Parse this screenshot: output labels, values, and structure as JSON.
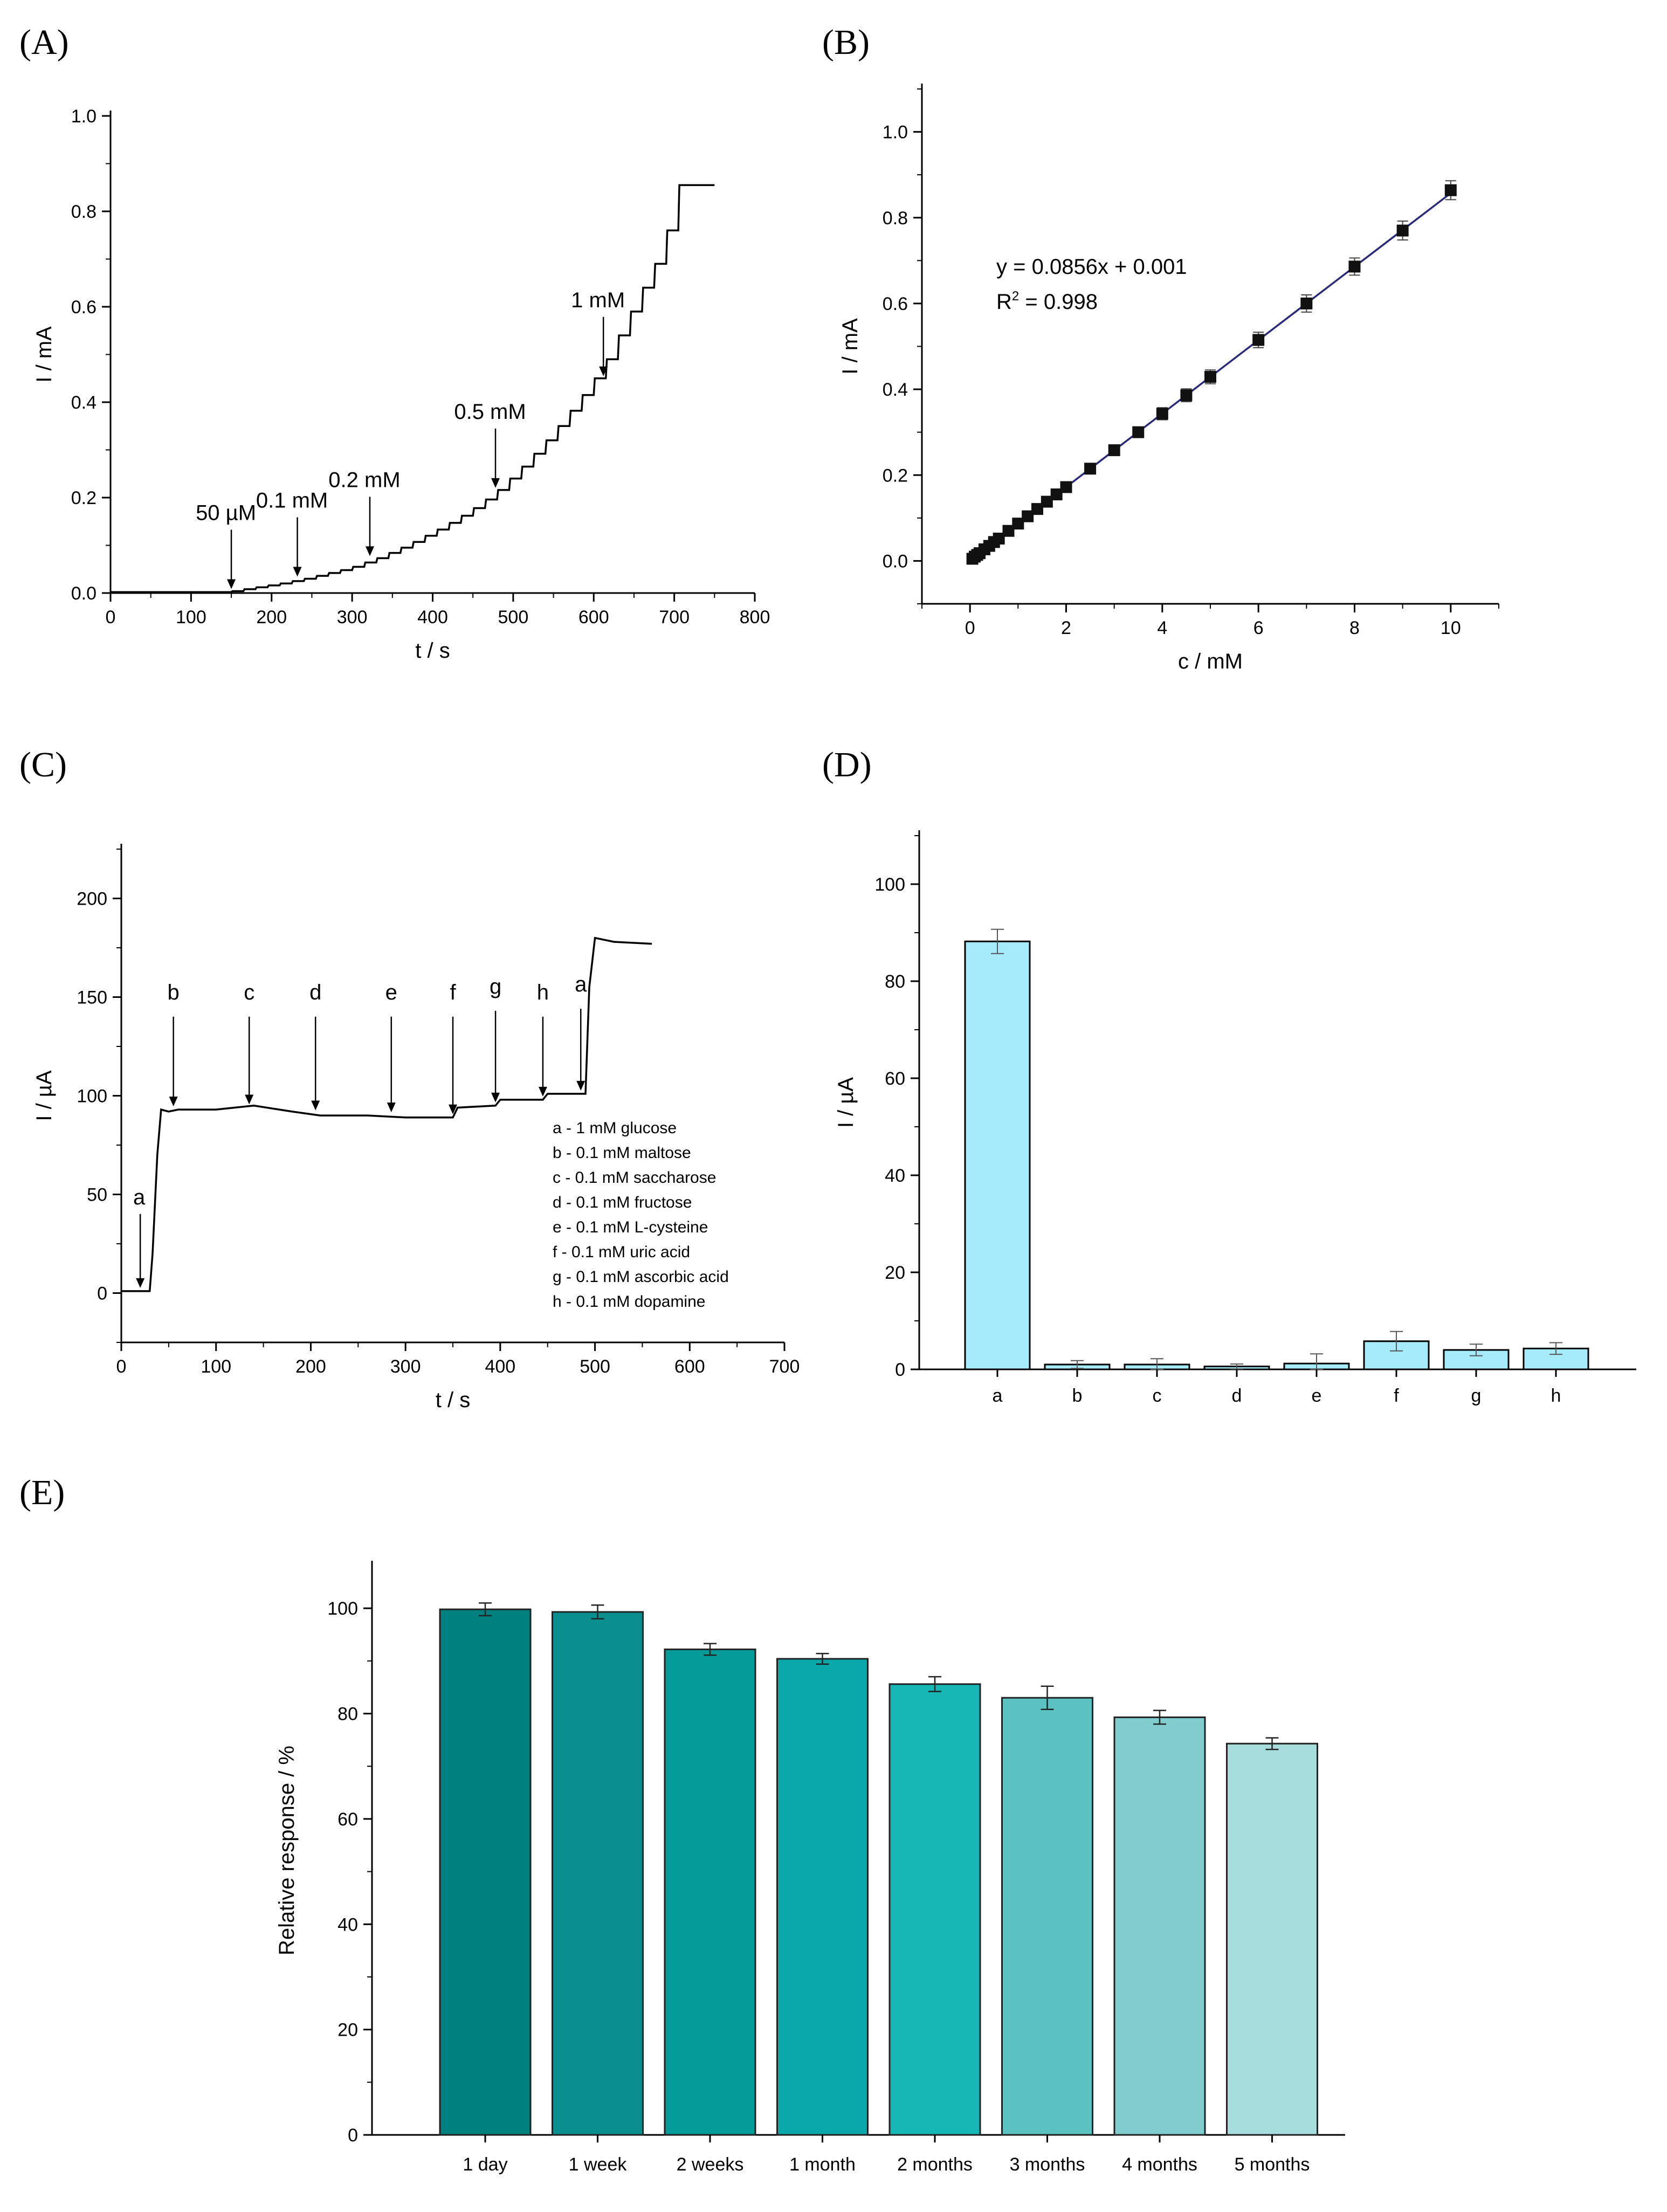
{
  "panel_labels": [
    "(A)",
    "(B)",
    "(C)",
    "(D)",
    "(E)"
  ],
  "colors": {
    "line": "#000000",
    "fit_line": "#2a2a7a",
    "bar_d": "#a6ebfb",
    "bars_e": [
      "#00807f",
      "#0a8f8e",
      "#059b99",
      "#0aa8a8",
      "#17b7b5",
      "#5bc2c1",
      "#81cccc",
      "#a7dcdc"
    ]
  },
  "chart_data": [
    {
      "id": "A",
      "type": "line",
      "title": "",
      "xlabel": "t / s",
      "ylabel": "I / mA",
      "xlim": [
        0,
        800
      ],
      "ylim": [
        0,
        1.0
      ],
      "xticks": [
        "0",
        "100",
        "200",
        "300",
        "400",
        "500",
        "600",
        "700",
        "800"
      ],
      "yticks": [
        "0.0",
        "0.2",
        "0.4",
        "0.6",
        "0.8",
        "1.0"
      ],
      "steps": {
        "start_time": 150,
        "end_time": 750,
        "times": [
          150,
          165,
          180,
          195,
          210,
          225,
          240,
          255,
          270,
          285,
          300,
          315,
          330,
          345,
          360,
          375,
          390,
          405,
          420,
          435,
          450,
          465,
          480,
          495,
          510,
          525,
          540,
          555,
          570,
          585,
          600,
          615,
          630,
          645,
          660,
          675,
          690,
          705
        ],
        "values": [
          0.004,
          0.008,
          0.012,
          0.016,
          0.02,
          0.025,
          0.03,
          0.036,
          0.042,
          0.048,
          0.055,
          0.064,
          0.073,
          0.084,
          0.095,
          0.107,
          0.12,
          0.133,
          0.147,
          0.162,
          0.178,
          0.196,
          0.216,
          0.24,
          0.265,
          0.292,
          0.32,
          0.35,
          0.382,
          0.415,
          0.45,
          0.49,
          0.54,
          0.59,
          0.64,
          0.69,
          0.76,
          0.855
        ]
      },
      "annotations": [
        {
          "text": "50 µM",
          "x": 150,
          "y": 0.004
        },
        {
          "text": "0.1 mM",
          "x": 232,
          "y": 0.03
        },
        {
          "text": "0.2 mM",
          "x": 322,
          "y": 0.073
        },
        {
          "text": "0.5 mM",
          "x": 478,
          "y": 0.216
        },
        {
          "text": "1 mM",
          "x": 612,
          "y": 0.45
        }
      ]
    },
    {
      "id": "B",
      "type": "scatter",
      "title": "",
      "xlabel": "c / mM",
      "ylabel": "I / mA",
      "xlim": [
        -1,
        11
      ],
      "ylim": [
        -0.1,
        1.1
      ],
      "xticks": [
        "0",
        "2",
        "4",
        "6",
        "8",
        "10"
      ],
      "yticks": [
        "0.0",
        "0.2",
        "0.4",
        "0.6",
        "0.8",
        "1.0"
      ],
      "x": [
        0.05,
        0.1,
        0.15,
        0.2,
        0.3,
        0.4,
        0.5,
        0.6,
        0.8,
        1.0,
        1.2,
        1.4,
        1.6,
        1.8,
        2.0,
        2.5,
        3.0,
        3.5,
        4.0,
        4.5,
        5.0,
        6.0,
        7.0,
        8.0,
        9.0,
        10.0
      ],
      "y": [
        0.005,
        0.01,
        0.014,
        0.018,
        0.027,
        0.035,
        0.044,
        0.052,
        0.07,
        0.087,
        0.104,
        0.121,
        0.138,
        0.155,
        0.172,
        0.215,
        0.258,
        0.3,
        0.343,
        0.386,
        0.429,
        0.515,
        0.6,
        0.686,
        0.77,
        0.864
      ],
      "yerr": [
        0.003,
        0.003,
        0.003,
        0.003,
        0.004,
        0.004,
        0.004,
        0.004,
        0.005,
        0.005,
        0.005,
        0.006,
        0.006,
        0.006,
        0.007,
        0.008,
        0.009,
        0.012,
        0.014,
        0.015,
        0.016,
        0.018,
        0.02,
        0.02,
        0.022,
        0.022
      ],
      "fit": {
        "slope": 0.0856,
        "intercept": 0.001
      },
      "equation": "y = 0.0856x + 0.001",
      "r2_prefix": "R",
      "r2_sup": "2",
      "r2_value": " = 0.998"
    },
    {
      "id": "C",
      "type": "line",
      "title": "",
      "xlabel": "t / s",
      "ylabel": "I / µA",
      "xlim": [
        0,
        700
      ],
      "ylim": [
        -25,
        225
      ],
      "xticks": [
        "0",
        "100",
        "200",
        "300",
        "400",
        "500",
        "600",
        "700"
      ],
      "yticks": [
        "0",
        "50",
        "100",
        "150",
        "200"
      ],
      "x": [
        0,
        30,
        33,
        38,
        42,
        50,
        60,
        100,
        140,
        180,
        210,
        260,
        300,
        350,
        355,
        395,
        400,
        445,
        450,
        490,
        494,
        500,
        520,
        560
      ],
      "y": [
        1,
        1,
        20,
        70,
        93,
        92,
        93,
        93,
        95,
        92,
        90,
        90,
        89,
        89,
        94,
        95,
        98,
        98,
        101,
        101,
        155,
        180,
        178,
        177
      ],
      "annotations": [
        {
          "text": "a",
          "x": 20,
          "y": 1,
          "label_y": 45
        },
        {
          "text": "b",
          "x": 55,
          "y": 93,
          "label_y": 145
        },
        {
          "text": "c",
          "x": 135,
          "y": 94,
          "label_y": 145
        },
        {
          "text": "d",
          "x": 205,
          "y": 91,
          "label_y": 145
        },
        {
          "text": "e",
          "x": 285,
          "y": 90,
          "label_y": 145
        },
        {
          "text": "f",
          "x": 350,
          "y": 89,
          "label_y": 145
        },
        {
          "text": "g",
          "x": 395,
          "y": 95,
          "label_y": 148
        },
        {
          "text": "h",
          "x": 445,
          "y": 98,
          "label_y": 145
        },
        {
          "text": "a",
          "x": 485,
          "y": 101,
          "label_y": 149
        }
      ],
      "legend": [
        "a - 1 mM glucose",
        "b - 0.1 mM maltose",
        "c - 0.1 mM saccharose",
        "d - 0.1 mM fructose",
        "e - 0.1 mM L-cysteine",
        "f -  0.1 mM uric acid",
        "g - 0.1 mM ascorbic acid",
        "h - 0.1 mM dopamine"
      ]
    },
    {
      "id": "D",
      "type": "bar",
      "title": "",
      "xlabel": "",
      "ylabel": "I / µA",
      "ylim": [
        0,
        110
      ],
      "yticks": [
        "0",
        "20",
        "40",
        "60",
        "80",
        "100"
      ],
      "categories": [
        "a",
        "b",
        "c",
        "d",
        "e",
        "f",
        "g",
        "h"
      ],
      "values": [
        88.2,
        1.0,
        1.0,
        0.6,
        1.2,
        5.8,
        4.0,
        4.3
      ],
      "yerr": [
        2.5,
        0.8,
        1.2,
        0.5,
        2.0,
        2.0,
        1.2,
        1.2
      ]
    },
    {
      "id": "E",
      "type": "bar",
      "title": "",
      "xlabel": "",
      "ylabel": "Relative response / %",
      "ylim": [
        0,
        108
      ],
      "yticks": [
        "0",
        "20",
        "40",
        "60",
        "80",
        "100"
      ],
      "categories": [
        "1 day",
        "1 week",
        "2 weeks",
        "1 month",
        "2 months",
        "3 months",
        "4 months",
        "5 months"
      ],
      "values": [
        99.8,
        99.3,
        92.2,
        90.4,
        85.6,
        83.0,
        79.3,
        74.3
      ],
      "yerr": [
        1.2,
        1.3,
        1.1,
        1.0,
        1.4,
        2.2,
        1.3,
        1.1
      ]
    }
  ]
}
